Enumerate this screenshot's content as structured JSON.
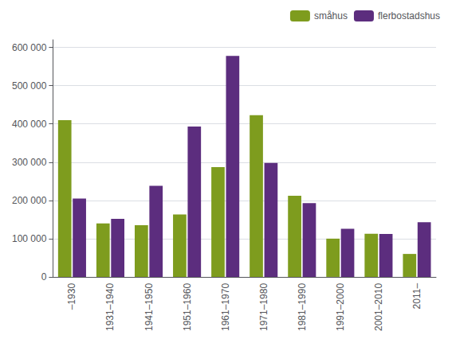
{
  "chart_data": {
    "type": "bar",
    "categories": [
      "–1930",
      "1931–1940",
      "1941–1950",
      "1951–1960",
      "1961–1970",
      "1971–1980",
      "1981–1990",
      "1991–2000",
      "2001–2010",
      "2011–"
    ],
    "series": [
      {
        "name": "småhus",
        "color": "#7e9c1e",
        "values": [
          410000,
          140000,
          135000,
          163000,
          287000,
          423000,
          212000,
          100000,
          113000,
          60000
        ]
      },
      {
        "name": "flerbostadshus",
        "color": "#5c2d7e",
        "values": [
          205000,
          152000,
          238000,
          393000,
          578000,
          298000,
          193000,
          126000,
          112000,
          143000
        ]
      }
    ],
    "ylim": [
      0,
      620000
    ],
    "yticks": [
      0,
      {
        "value": 100000,
        "label": "100 000"
      },
      {
        "value": 200000,
        "label": "200 000"
      },
      {
        "value": 300000,
        "label": "300 000"
      },
      {
        "value": 400000,
        "label": "400 000"
      },
      {
        "value": 500000,
        "label": "500 000"
      },
      {
        "value": 600000,
        "label": "600 000"
      }
    ],
    "grid": true,
    "legend": "upper right"
  }
}
